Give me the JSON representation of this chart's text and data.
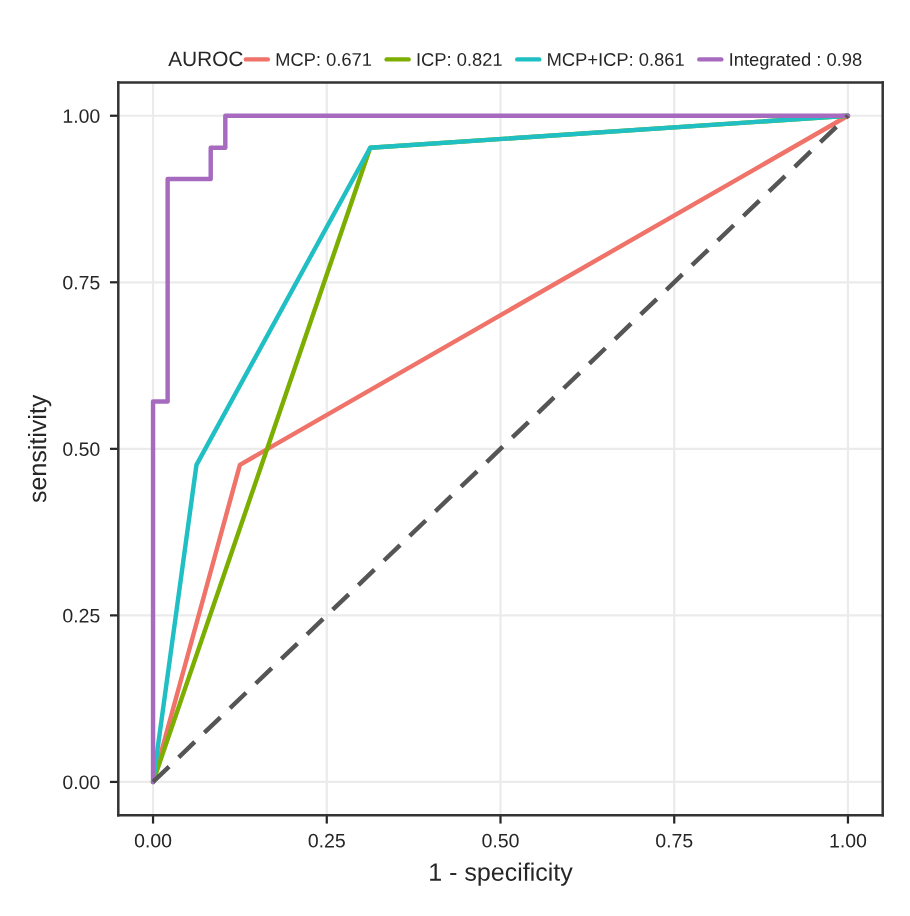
{
  "chart_data": {
    "type": "line",
    "xlabel": "1 - specificity",
    "ylabel": "sensitivity",
    "legend_title": "AUROC",
    "legend": "top",
    "xlim": [
      -0.05,
      1.05
    ],
    "ylim": [
      -0.05,
      1.05
    ],
    "grid": true,
    "line_style": "solid",
    "xticks": [
      {
        "value": 0,
        "label": "0.00"
      },
      {
        "value": 0.25,
        "label": "0.25"
      },
      {
        "value": 0.5,
        "label": "0.50"
      },
      {
        "value": 0.75,
        "label": "0.75"
      },
      {
        "value": 1,
        "label": "1.00"
      }
    ],
    "yticks": [
      {
        "value": 0,
        "label": "0.00"
      },
      {
        "value": 0.25,
        "label": "0.25"
      },
      {
        "value": 0.5,
        "label": "0.50"
      },
      {
        "value": 0.75,
        "label": "0.75"
      },
      {
        "value": 1,
        "label": "1.00"
      }
    ],
    "series": [
      {
        "name": "MCP: 0.671",
        "color": "#f0736a",
        "x": [
          0,
          0.125,
          1
        ],
        "values": [
          0,
          0.476,
          1
        ]
      },
      {
        "name": "ICP: 0.821",
        "color": "#7cae00",
        "x": [
          0,
          0.3125,
          1
        ],
        "values": [
          0,
          0.952,
          1
        ]
      },
      {
        "name": "MCP+ICP: 0.861",
        "color": "#1fbfc4",
        "x": [
          0,
          0.0625,
          0.3125,
          1
        ],
        "values": [
          0,
          0.476,
          0.952,
          1
        ]
      },
      {
        "name": "Integrated : 0.98",
        "color": "#a66bbf",
        "x": [
          0,
          0,
          0.021,
          0.021,
          0.083,
          0.083,
          0.104,
          0.104,
          1
        ],
        "values": [
          0,
          0.571,
          0.571,
          0.905,
          0.905,
          0.952,
          0.952,
          1,
          1
        ]
      },
      {
        "color": "#555555",
        "line_style": "dashed",
        "x": [
          0,
          1
        ],
        "values": [
          0,
          1
        ]
      }
    ]
  }
}
